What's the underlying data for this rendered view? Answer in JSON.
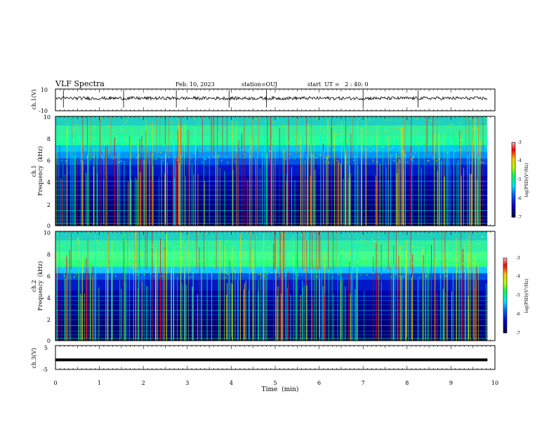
{
  "header": {
    "title": "VLF Spectra",
    "date": "Feb. 10, 2023",
    "station": "station=OUJ",
    "start": "start  UT =   2 : 40: 0"
  },
  "colors": {
    "spectrogram_palette": [
      "#00003c",
      "#0000c8",
      "#0064ff",
      "#00e6ff",
      "#00ff64",
      "#b4ff00",
      "#ffc800",
      "#ff0000",
      "#ffb4b4"
    ]
  },
  "chart_data": [
    {
      "type": "line",
      "name": "ch1-waveform",
      "ylabel": "ch.1(V)",
      "y_ticks": [
        "10",
        "-10"
      ],
      "ylim": [
        -10,
        10
      ],
      "xlim": [
        0,
        10
      ]
    },
    {
      "type": "heatmap",
      "name": "ch1-spectrogram",
      "ylabel_channel": "ch.1",
      "ylabel": "Frequency  (kHz)",
      "y_ticks": [
        "0",
        "2",
        "4",
        "6",
        "8",
        "10"
      ],
      "ylim": [
        0,
        10
      ],
      "xlim": [
        0,
        9.83
      ],
      "colorbar": {
        "label": "log(PSD)(V²/Hz)",
        "ticks": [
          "-3",
          "-4",
          "-5",
          "-6",
          "-7"
        ],
        "range": [
          -7,
          -3
        ]
      }
    },
    {
      "type": "heatmap",
      "name": "ch2-spectrogram",
      "ylabel_channel": "ch.2",
      "ylabel": "Frequency  (kHz)",
      "y_ticks": [
        "0",
        "2",
        "4",
        "6",
        "8",
        "10"
      ],
      "ylim": [
        0,
        10
      ],
      "xlim": [
        0,
        9.83
      ],
      "colorbar": {
        "label": "log(PSD)(V²/Hz)",
        "ticks": [
          "-3",
          "-4",
          "-5",
          "-6",
          "-7"
        ],
        "range": [
          -7,
          -3
        ]
      }
    },
    {
      "type": "line",
      "name": "ch3-waveform",
      "ylabel": "ch.3(V)",
      "y_ticks": [
        "5",
        "-5"
      ],
      "ylim": [
        -5,
        5
      ],
      "xlim": [
        0,
        9.83
      ]
    }
  ],
  "x_axis": {
    "label": "Time  (min)",
    "ticks": [
      "0",
      "1",
      "2",
      "3",
      "4",
      "5",
      "6",
      "7",
      "8",
      "9",
      "10"
    ],
    "range": [
      0,
      10
    ]
  }
}
